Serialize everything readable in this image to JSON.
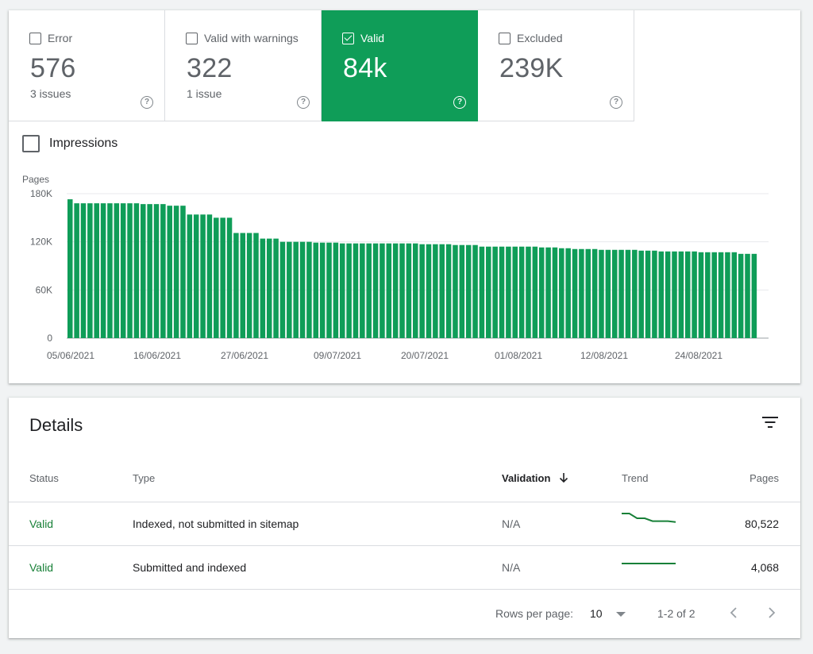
{
  "summary": {
    "tiles": [
      {
        "label": "Error",
        "value": "576",
        "sub": "3 issues",
        "checked": false,
        "selected": false
      },
      {
        "label": "Valid with warnings",
        "value": "322",
        "sub": "1 issue",
        "checked": false,
        "selected": false
      },
      {
        "label": "Valid",
        "value": "84k",
        "sub": "",
        "checked": true,
        "selected": true
      },
      {
        "label": "Excluded",
        "value": "239K",
        "sub": "",
        "checked": false,
        "selected": false
      }
    ],
    "impressions_label": "Impressions"
  },
  "colors": {
    "accent": "#0f9d58",
    "valid_text": "#188038"
  },
  "chart_data": {
    "type": "bar",
    "ylabel": "Pages",
    "ylim": [
      0,
      180000
    ],
    "y_ticks": [
      "0",
      "60K",
      "120K",
      "180K"
    ],
    "x_tick_labels": [
      "05/06/2021",
      "16/06/2021",
      "27/06/2021",
      "09/07/2021",
      "20/07/2021",
      "01/08/2021",
      "12/08/2021",
      "24/08/2021"
    ],
    "bar_color": "#0f9d58",
    "grid": true,
    "values": [
      173000,
      168000,
      168000,
      168000,
      168000,
      168000,
      168000,
      168000,
      168000,
      168000,
      168000,
      167000,
      167000,
      167000,
      167000,
      165000,
      165000,
      165000,
      154000,
      154000,
      154000,
      154000,
      150000,
      150000,
      150000,
      131000,
      131000,
      131000,
      131000,
      124000,
      124000,
      124000,
      120000,
      120000,
      120000,
      120000,
      120000,
      119000,
      119000,
      119000,
      119000,
      118000,
      118000,
      118000,
      118000,
      118000,
      118000,
      118000,
      118000,
      118000,
      118000,
      118000,
      118000,
      117000,
      117000,
      117000,
      117000,
      117000,
      116000,
      116000,
      116000,
      116000,
      114000,
      114000,
      114000,
      114000,
      114000,
      114000,
      114000,
      114000,
      114000,
      113000,
      113000,
      113000,
      112000,
      112000,
      111000,
      111000,
      111000,
      111000,
      110000,
      110000,
      110000,
      110000,
      110000,
      110000,
      109000,
      109000,
      109000,
      108000,
      108000,
      108000,
      108000,
      108000,
      108000,
      107000,
      107000,
      107000,
      107000,
      107000,
      107000,
      105000,
      105000,
      105000
    ]
  },
  "details": {
    "title": "Details",
    "columns": {
      "status": "Status",
      "type": "Type",
      "validation": "Validation",
      "trend": "Trend",
      "pages": "Pages"
    },
    "rows": [
      {
        "status": "Valid",
        "type": "Indexed, not submitted in sitemap",
        "validation": "N/A",
        "pages": "80,522",
        "trend": [
          100,
          100,
          95,
          95,
          92,
          92,
          92,
          91
        ]
      },
      {
        "status": "Valid",
        "type": "Submitted and indexed",
        "validation": "N/A",
        "pages": "4,068",
        "trend": [
          50,
          50,
          50,
          50,
          50,
          50,
          50,
          50
        ]
      }
    ],
    "rows_per_page_label": "Rows per page:",
    "rows_per_page_value": "10",
    "range_label": "1-2 of 2"
  }
}
